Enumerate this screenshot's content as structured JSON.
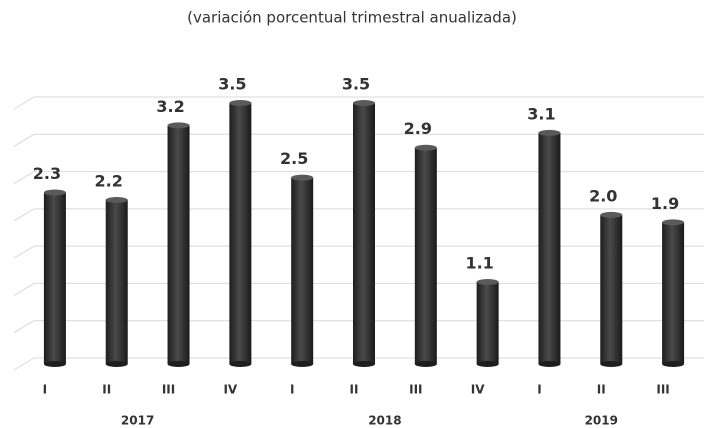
{
  "chart_data": {
    "type": "bar",
    "subtitle": "(variación porcentual trimestral anualizada)",
    "categories": [
      "I",
      "II",
      "III",
      "IV",
      "I",
      "II",
      "III",
      "IV",
      "I",
      "II",
      "III"
    ],
    "groups": [
      "2017",
      "2018",
      "2019"
    ],
    "values": [
      2.3,
      2.2,
      3.2,
      3.5,
      2.5,
      3.5,
      2.9,
      1.1,
      3.1,
      2.0,
      1.9
    ],
    "value_labels": [
      "2.3",
      "2.2",
      "3.2",
      "3.5",
      "2.5",
      "3.5",
      "2.9",
      "1.1",
      "3.1",
      "2.0",
      "1.9"
    ],
    "color": "#3a3a3a",
    "ylim": [
      0,
      3.5
    ],
    "yticks": [
      0,
      0.5,
      1,
      1.5,
      2,
      2.5,
      3,
      3.5
    ],
    "grid": true
  }
}
